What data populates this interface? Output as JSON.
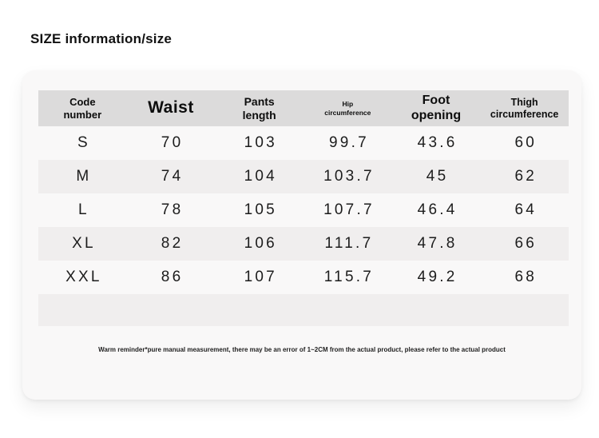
{
  "page": {
    "title": "SIZE information/size"
  },
  "table": {
    "headers": [
      {
        "label": "Code number",
        "lines": [
          "Code",
          "number"
        ]
      },
      {
        "label": "Waist",
        "lines": [
          "Waist"
        ]
      },
      {
        "label": "Pants length",
        "lines": [
          "Pants",
          "length"
        ]
      },
      {
        "label": "Hip circumference",
        "lines": [
          "Hip",
          "circumference"
        ]
      },
      {
        "label": "Foot opening",
        "lines": [
          "Foot",
          "opening"
        ]
      },
      {
        "label": "Thigh circumference",
        "lines": [
          "Thigh",
          "circumference"
        ]
      }
    ],
    "rows": [
      {
        "cells": [
          "S",
          "70",
          "103",
          "99.7",
          "43.6",
          "60"
        ]
      },
      {
        "cells": [
          "M",
          "74",
          "104",
          "103.7",
          "45",
          "62"
        ]
      },
      {
        "cells": [
          "L",
          "78",
          "105",
          "107.7",
          "46.4",
          "64"
        ]
      },
      {
        "cells": [
          "XL",
          "82",
          "106",
          "111.7",
          "47.8",
          "66"
        ]
      },
      {
        "cells": [
          "XXL",
          "86",
          "107",
          "115.7",
          "49.2",
          "68"
        ]
      }
    ]
  },
  "note": "Warm reminder*pure manual measurement, there may be an error of 1~2CM from the actual product, please refer to the actual product",
  "colors": {
    "header_bg": "#dcdbdb",
    "alt_row_bg": "#f0eeee",
    "card_bg": "#f9f8f8",
    "text": "#1c1c1c"
  }
}
